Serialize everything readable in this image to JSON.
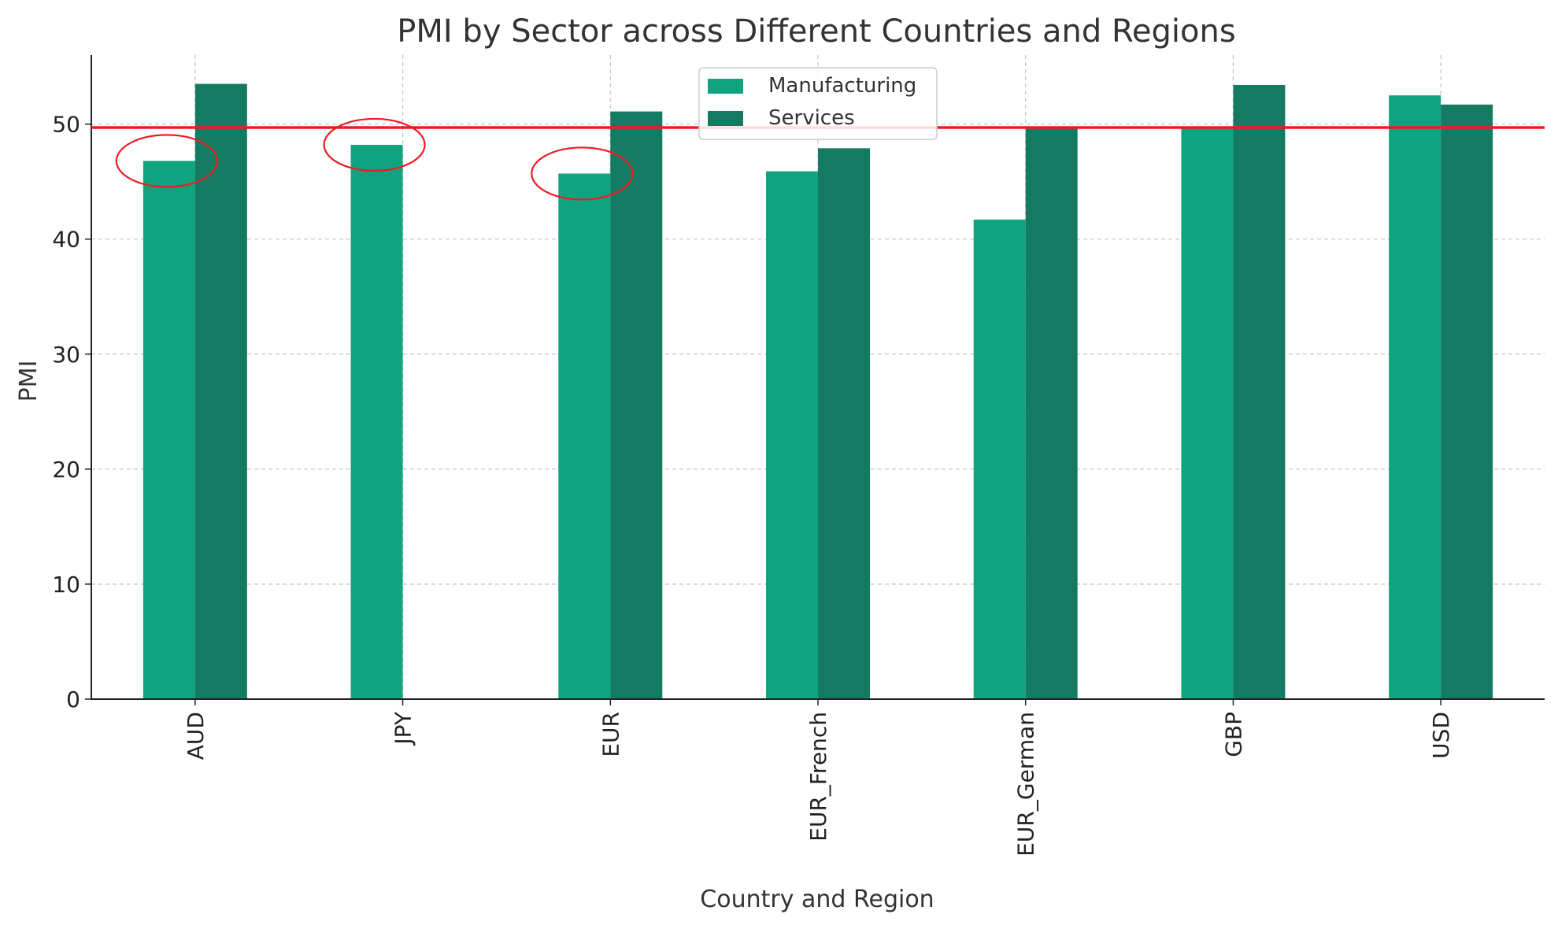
{
  "chart_data": {
    "type": "bar",
    "title": "PMI by Sector across Different Countries and Regions",
    "xlabel": "Country and Region",
    "ylabel": "PMI",
    "categories": [
      "AUD",
      "JPY",
      "EUR",
      "EUR_French",
      "EUR_German",
      "GBP",
      "USD"
    ],
    "series": [
      {
        "name": "Manufacturing",
        "values": [
          46.8,
          48.2,
          45.7,
          45.9,
          41.7,
          49.8,
          52.5
        ],
        "color": "#10a37f"
      },
      {
        "name": "Services",
        "values": [
          53.5,
          null,
          51.1,
          47.9,
          49.8,
          53.4,
          51.7
        ],
        "color": "#147b62"
      }
    ],
    "ylim": [
      0,
      56
    ],
    "yticks": [
      0,
      10,
      20,
      30,
      40,
      50
    ],
    "grid": true,
    "legend_position": "top-center",
    "reference_line": {
      "value": 49.7,
      "color": "#ee1b24"
    },
    "highlight_circles": [
      {
        "category": "AUD",
        "series": "Manufacturing",
        "color": "#ee1b24"
      },
      {
        "category": "JPY",
        "series": "Manufacturing",
        "color": "#ee1b24"
      },
      {
        "category": "EUR",
        "series": "Manufacturing",
        "color": "#ee1b24"
      }
    ]
  }
}
